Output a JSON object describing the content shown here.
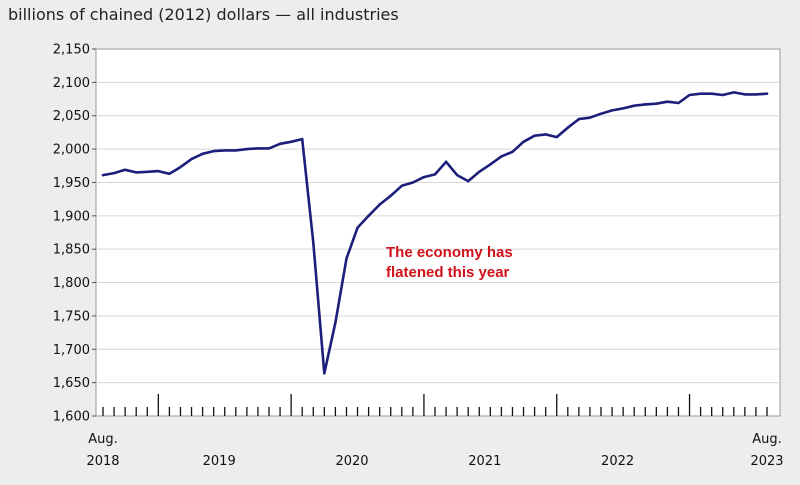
{
  "chart_data": {
    "type": "line",
    "subtitle": "billions of chained (2012) dollars — all industries",
    "ylim": [
      1600,
      2150
    ],
    "y_ticks": [
      "1,600",
      "1,650",
      "1,700",
      "1,750",
      "1,800",
      "1,850",
      "1,900",
      "1,950",
      "2,000",
      "2,050",
      "2,100",
      "2,150"
    ],
    "x_start_label": [
      "Aug.",
      "2018"
    ],
    "x_end_label": [
      "Aug.",
      "2023"
    ],
    "x_year_labels": [
      "2019",
      "2020",
      "2021",
      "2022"
    ],
    "grid": true,
    "annotation": [
      "The economy has",
      "flatened this year"
    ],
    "line_color": "#1b1f7a",
    "annotation_color": "#d0111a",
    "series": [
      {
        "x": [
          "2018-08",
          "2018-09",
          "2018-10",
          "2018-11",
          "2018-12",
          "2019-01",
          "2019-02",
          "2019-03",
          "2019-04",
          "2019-05",
          "2019-06",
          "2019-07",
          "2019-08",
          "2019-09",
          "2019-10",
          "2019-11",
          "2019-12",
          "2020-01",
          "2020-02",
          "2020-03",
          "2020-04",
          "2020-05",
          "2020-06",
          "2020-07",
          "2020-08",
          "2020-09",
          "2020-10",
          "2020-11",
          "2020-12",
          "2021-01",
          "2021-02",
          "2021-03",
          "2021-04",
          "2021-05",
          "2021-06",
          "2021-07",
          "2021-08",
          "2021-09",
          "2021-10",
          "2021-11",
          "2021-12",
          "2022-01",
          "2022-02",
          "2022-03",
          "2022-04",
          "2022-05",
          "2022-06",
          "2022-07",
          "2022-08",
          "2022-09",
          "2022-10",
          "2022-11",
          "2022-12",
          "2023-01",
          "2023-02",
          "2023-03",
          "2023-04",
          "2023-05",
          "2023-06",
          "2023-07",
          "2023-08"
        ],
        "values": [
          1961,
          1964,
          1969,
          1965,
          1966,
          1967,
          1963,
          1973,
          1985,
          1993,
          1997,
          1998,
          1998,
          2000,
          2001,
          2001,
          2008,
          2011,
          2015,
          1860,
          1664,
          1740,
          1836,
          1882,
          1900,
          1917,
          1930,
          1945,
          1950,
          1958,
          1962,
          1981,
          1961,
          1952,
          1966,
          1977,
          1989,
          1996,
          2011,
          2020,
          2022,
          2018,
          2032,
          2045,
          2047,
          2053,
          2058,
          2061,
          2065,
          2067,
          2068,
          2071,
          2069,
          2081,
          2083,
          2083,
          2081,
          2085,
          2082,
          2082,
          2083
        ]
      }
    ]
  }
}
